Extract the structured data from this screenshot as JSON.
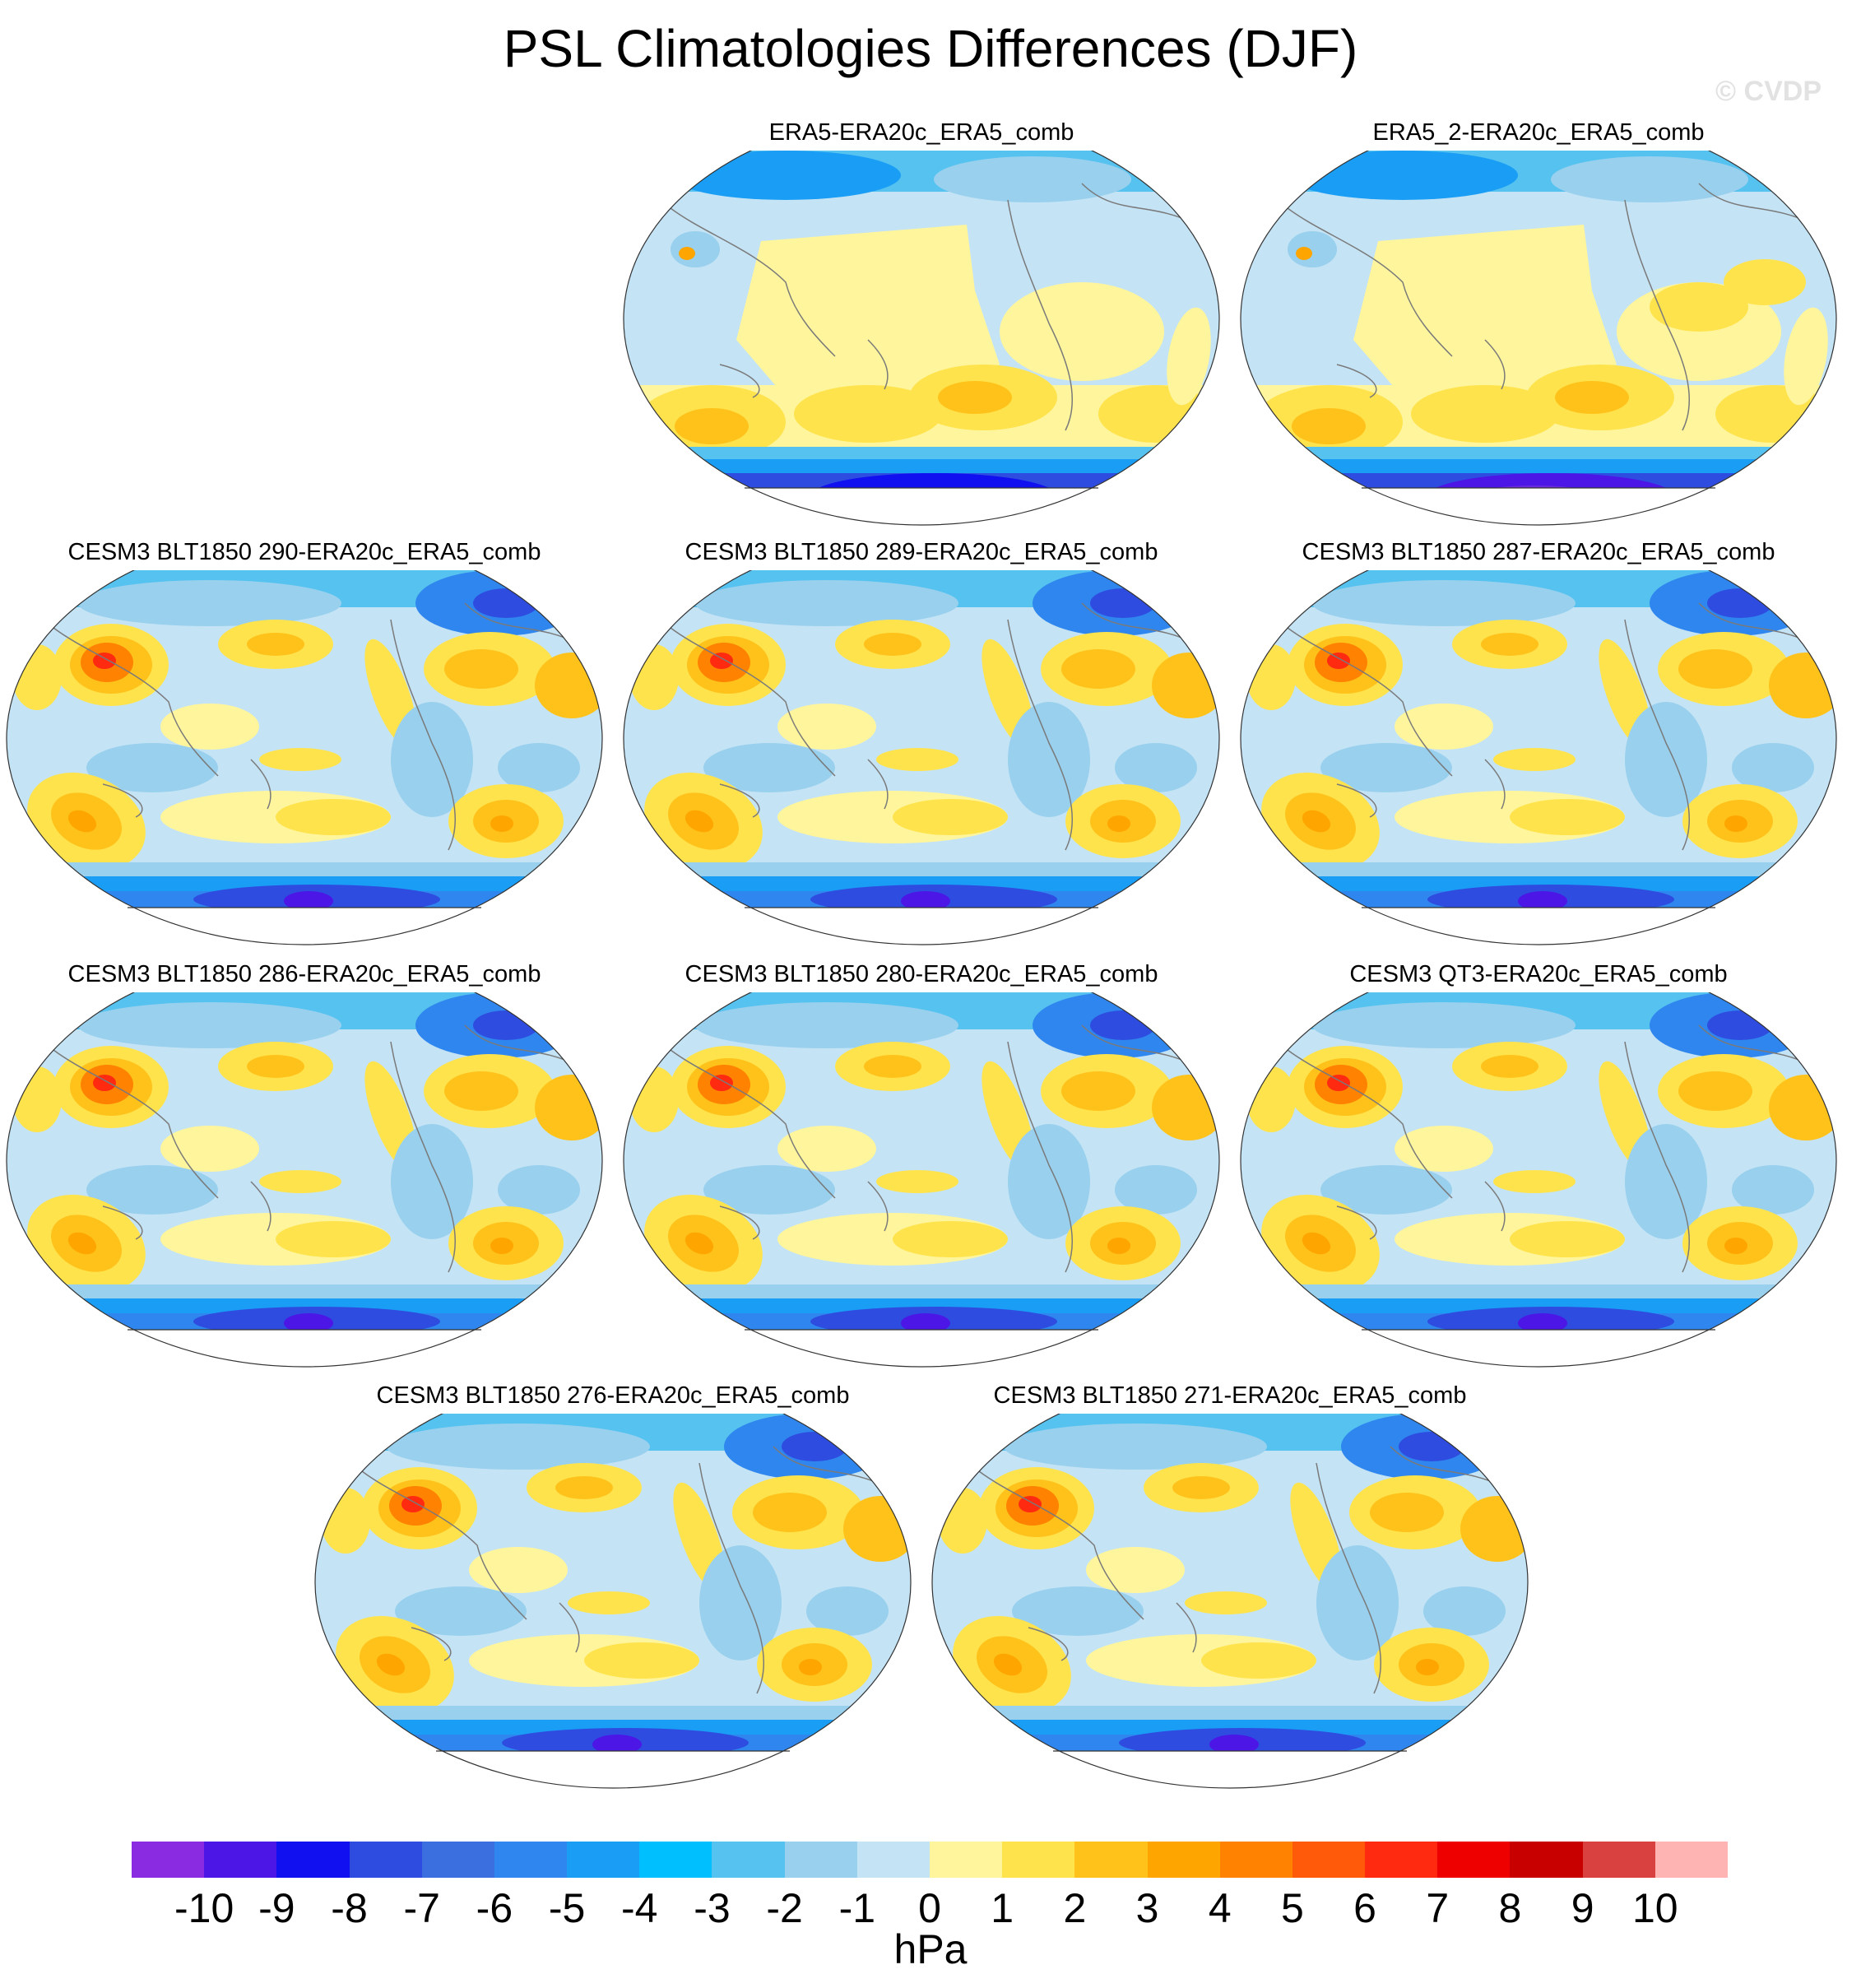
{
  "title": "PSL Climatologies Differences (DJF)",
  "watermark": "© CVDP",
  "panels": [
    {
      "label": "ERA5-ERA20c_ERA5_comb",
      "variant": "reanalysis"
    },
    {
      "label": "ERA5_2-ERA20c_ERA5_comb",
      "variant": "reanalysis2"
    },
    {
      "label": "CESM3 BLT1850 290-ERA20c_ERA5_comb",
      "variant": "model"
    },
    {
      "label": "CESM3 BLT1850 289-ERA20c_ERA5_comb",
      "variant": "model"
    },
    {
      "label": "CESM3 BLT1850 287-ERA20c_ERA5_comb",
      "variant": "model"
    },
    {
      "label": "CESM3 BLT1850 286-ERA20c_ERA5_comb",
      "variant": "model"
    },
    {
      "label": "CESM3 BLT1850 280-ERA20c_ERA5_comb",
      "variant": "model"
    },
    {
      "label": "CESM3 QT3-ERA20c_ERA5_comb",
      "variant": "model"
    },
    {
      "label": "CESM3 BLT1850 276-ERA20c_ERA5_comb",
      "variant": "model"
    },
    {
      "label": "CESM3 BLT1850 271-ERA20c_ERA5_comb",
      "variant": "model"
    }
  ],
  "colorbar": {
    "units": "hPa",
    "ticks": [
      "-10",
      "-9",
      "-8",
      "-7",
      "-6",
      "-5",
      "-4",
      "-3",
      "-2",
      "-1",
      "0",
      "1",
      "2",
      "3",
      "4",
      "5",
      "6",
      "7",
      "8",
      "9",
      "10"
    ],
    "colors": [
      "#8a2be2",
      "#4b16e6",
      "#1010f0",
      "#2e4de0",
      "#3b6fe0",
      "#2f86ee",
      "#1a9ef5",
      "#00bfff",
      "#56c2f0",
      "#98d0ee",
      "#c4e3f5",
      "#fff59c",
      "#ffe34d",
      "#ffc21a",
      "#ffa500",
      "#ff8200",
      "#ff5a0a",
      "#ff2a10",
      "#ee0000",
      "#c80000",
      "#d94040",
      "#ffb4b4"
    ]
  }
}
